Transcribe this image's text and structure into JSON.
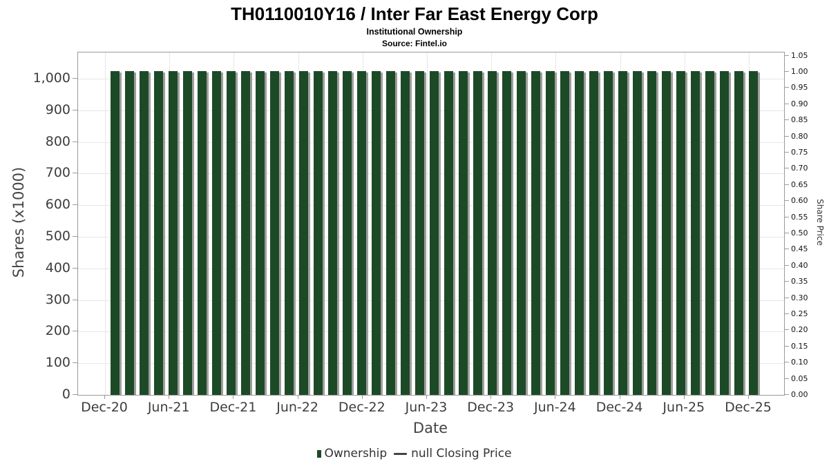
{
  "chart_data": {
    "type": "bar",
    "title": "TH0110010Y16 / Inter Far East Energy Corp",
    "subtitle": "Institutional Ownership",
    "source": "Source: Fintel.io",
    "xlabel": "Date",
    "ylabel_left": "Shares (x1000)",
    "ylabel_right": "Share Price",
    "x_tick_labels": [
      "Dec-20",
      "Jun-21",
      "Dec-21",
      "Jun-22",
      "Dec-22",
      "Jun-23",
      "Dec-23",
      "Jun-24",
      "Dec-24",
      "Jun-25",
      "Dec-25"
    ],
    "y_left_ticks": [
      0,
      100,
      200,
      300,
      400,
      500,
      600,
      700,
      800,
      900,
      1000
    ],
    "y_left_tick_labels": [
      "0",
      "100",
      "200",
      "300",
      "400",
      "500",
      "600",
      "700",
      "800",
      "900",
      "1,000"
    ],
    "ylim_left": [
      0,
      1083
    ],
    "y_right_ticks": [
      0,
      0.05,
      0.1,
      0.15,
      0.2,
      0.25,
      0.3,
      0.35,
      0.4,
      0.45,
      0.5,
      0.55,
      0.6,
      0.65,
      0.7,
      0.75,
      0.8,
      0.85,
      0.9,
      0.95,
      1.0,
      1.05
    ],
    "ylim_right": [
      0,
      1.06
    ],
    "grid": {
      "horizontal": true,
      "vertical": true
    },
    "legend_position": "bottom-center",
    "series": [
      {
        "name": "Ownership",
        "type": "bar",
        "color": "#1d4a26",
        "values": [
          1025,
          1025,
          1025,
          1025,
          1025,
          1025,
          1025,
          1025,
          1025,
          1025,
          1025,
          1025,
          1025,
          1025,
          1025,
          1025,
          1025,
          1025,
          1025,
          1025,
          1025,
          1025,
          1025,
          1025,
          1025,
          1025,
          1025,
          1025,
          1025,
          1025,
          1025,
          1025,
          1025,
          1025,
          1025,
          1025,
          1025,
          1025,
          1025,
          1025,
          1025,
          1025,
          1025,
          1025,
          1025
        ]
      },
      {
        "name": "null Closing Price",
        "type": "line",
        "color": "#444444",
        "values": []
      }
    ],
    "colors": {
      "bar": "#1d4a26",
      "bar_shadow": "#9e9e9e",
      "grid": "#e7e7e7",
      "axis_border": "#9a9a9a",
      "tick_text": "#3d3d3d",
      "right_tick_text": "#111111",
      "axis_label_text": "#444444",
      "legend_text": "#333333",
      "title_text": "#000000",
      "background": "#ffffff"
    }
  }
}
